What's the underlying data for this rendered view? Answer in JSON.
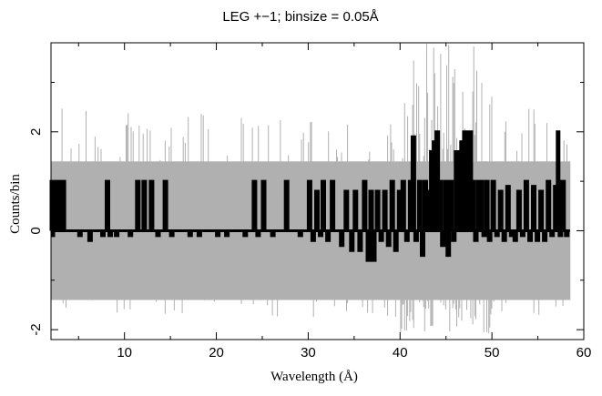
{
  "chart_data": {
    "type": "line",
    "title": "LEG +−1; binsize = 0.05Å",
    "xlabel": "Wavelength (Å)",
    "ylabel": "Counts/bin",
    "xlim": [
      2,
      60
    ],
    "ylim": [
      -2.2,
      3.8
    ],
    "x_ticks": [
      10,
      20,
      30,
      40,
      50,
      60
    ],
    "y_ticks": [
      -2,
      0,
      2
    ],
    "grid": false,
    "legend": "none",
    "error_band": {
      "x_range": [
        2,
        58.5
      ],
      "typical_low": -1.4,
      "typical_high": 1.4,
      "color": "#b0b0b0"
    },
    "series": [
      {
        "color": "#000000",
        "x": [
          2.0,
          2.2,
          2.3,
          2.6,
          2.8,
          3.0,
          3.2,
          3.5,
          5.0,
          5.6,
          6.1,
          6.8,
          7.5,
          8.0,
          8.3,
          9.0,
          10.0,
          10.5,
          11.3,
          11.6,
          12.0,
          12.4,
          12.8,
          13.5,
          14.3,
          15.0,
          16.0,
          17.0,
          18.0,
          19.0,
          20.0,
          21.0,
          22.0,
          23.0,
          24.0,
          24.4,
          25.0,
          26.0,
          26.5,
          27.5,
          28.5,
          29.0,
          30.0,
          30.4,
          30.8,
          31.2,
          31.5,
          32.0,
          32.5,
          33.0,
          33.5,
          34.0,
          34.6,
          35.0,
          35.5,
          36.0,
          36.4,
          36.7,
          37.0,
          37.4,
          37.8,
          38.2,
          38.6,
          39.0,
          39.4,
          39.8,
          40.2,
          40.6,
          41.0,
          41.3,
          41.6,
          42.0,
          42.3,
          42.6,
          43.0,
          43.3,
          43.6,
          43.9,
          44.2,
          44.5,
          44.8,
          45.1,
          45.4,
          45.7,
          46.0,
          46.3,
          46.6,
          46.9,
          47.2,
          47.5,
          47.8,
          48.1,
          48.4,
          48.7,
          49.0,
          49.3,
          49.6,
          50.0,
          50.4,
          50.8,
          51.2,
          51.6,
          52.0,
          52.4,
          52.8,
          53.2,
          53.6,
          54.0,
          54.4,
          54.8,
          55.2,
          55.6,
          56.0,
          56.4,
          56.8,
          57.1,
          57.3,
          57.6,
          58.0
        ],
        "values": [
          1.0,
          -0.1,
          1.0,
          0.0,
          1.0,
          0.0,
          1.0,
          0.0,
          -0.1,
          0.0,
          -0.2,
          0.0,
          -0.1,
          1.0,
          -0.1,
          -0.1,
          0.0,
          -0.1,
          1.0,
          0.0,
          1.0,
          0.0,
          1.0,
          -0.1,
          1.0,
          -0.1,
          0.0,
          -0.1,
          -0.1,
          0.0,
          -0.1,
          -0.1,
          0.0,
          -0.1,
          1.0,
          -0.1,
          1.0,
          -0.1,
          0.0,
          1.0,
          0.0,
          -0.1,
          1.0,
          -0.2,
          0.8,
          -0.1,
          1.0,
          -0.2,
          1.0,
          0.0,
          -0.3,
          0.8,
          -0.4,
          0.8,
          -0.4,
          1.0,
          -0.6,
          0.8,
          -0.6,
          0.8,
          -0.2,
          0.8,
          -0.3,
          1.0,
          -0.4,
          0.8,
          1.0,
          -0.2,
          1.0,
          1.9,
          -0.2,
          1.0,
          -0.5,
          1.0,
          0.8,
          1.6,
          1.8,
          2.0,
          1.0,
          -0.3,
          1.0,
          -0.5,
          1.0,
          -0.2,
          1.6,
          1.0,
          1.8,
          2.0,
          1.0,
          2.0,
          1.0,
          -0.2,
          1.0,
          1.0,
          -0.1,
          1.0,
          -0.2,
          1.0,
          -0.1,
          0.8,
          -0.2,
          0.9,
          -0.1,
          -0.2,
          0.8,
          -0.1,
          1.0,
          -0.2,
          0.9,
          -0.2,
          0.8,
          -0.2,
          1.0,
          -0.1,
          0.9,
          2.0,
          -0.1,
          1.0,
          -0.1
        ]
      }
    ]
  }
}
